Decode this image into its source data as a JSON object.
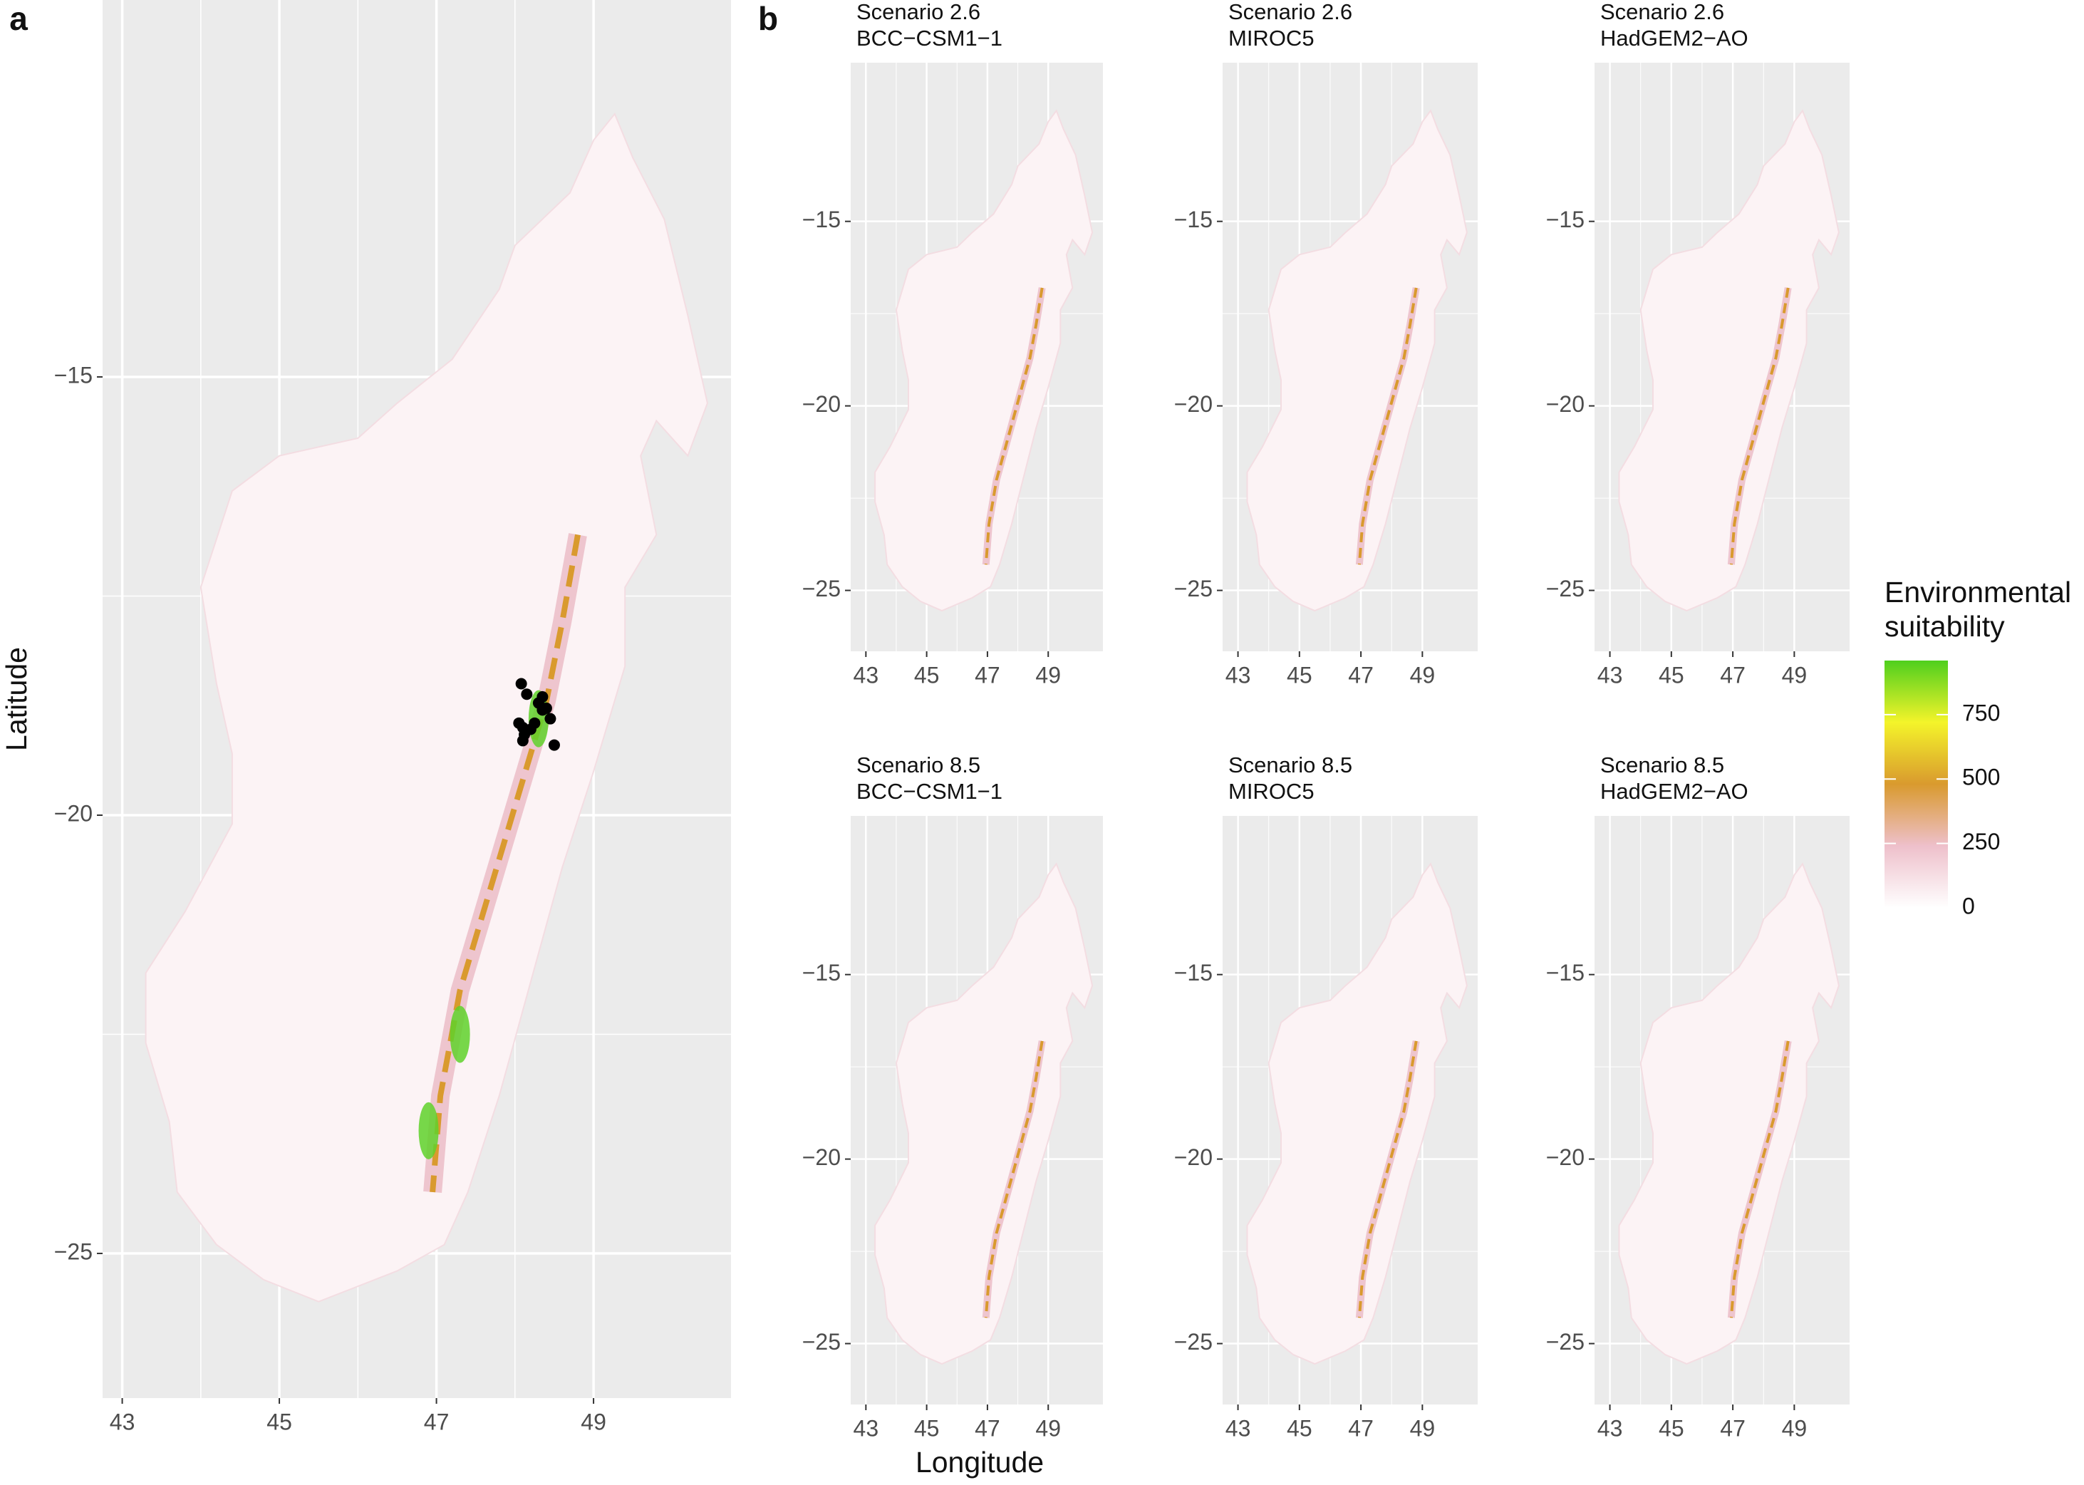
{
  "chart_data": [
    {
      "type": "map",
      "panel_label": "a",
      "y_label": "Latitude",
      "xlim": [
        42.75,
        50.75
      ],
      "ylim": [
        -26.65,
        -10.7
      ],
      "xticks": [
        43,
        45,
        47,
        49
      ],
      "yticks": [
        {
          "value": -15,
          "label": "−15"
        },
        {
          "value": -20,
          "label": "−20"
        },
        {
          "value": -25,
          "label": "−25"
        }
      ],
      "grid": true,
      "points": {
        "x": [
          48.08,
          48.15,
          48.3,
          48.35,
          48.4,
          48.45,
          48.05,
          48.1,
          48.12,
          48.2,
          48.25,
          48.1,
          48.5,
          48.35
        ],
        "y": [
          -18.5,
          -18.62,
          -18.72,
          -18.8,
          -18.78,
          -18.9,
          -18.95,
          -19.0,
          -19.08,
          -19.02,
          -18.95,
          -19.15,
          -19.2,
          -18.65
        ]
      }
    },
    {
      "type": "map",
      "panel_label": "b",
      "title_lines": [
        "Scenario 2.6",
        "BCC−CSM1−1"
      ],
      "xlim": [
        42.5,
        50.8
      ],
      "ylim": [
        -26.65,
        -10.7
      ],
      "xticks": [
        43,
        45,
        47,
        49
      ],
      "yticks": [
        {
          "value": -15,
          "label": "−15"
        },
        {
          "value": -20,
          "label": "−20"
        },
        {
          "value": -25,
          "label": "−25"
        }
      ],
      "grid": true
    },
    {
      "type": "map",
      "title_lines": [
        "Scenario 2.6",
        "MIROC5"
      ],
      "xlim": [
        42.5,
        50.8
      ],
      "ylim": [
        -26.65,
        -10.7
      ],
      "xticks": [
        43,
        45,
        47,
        49
      ],
      "yticks": [
        {
          "value": -15,
          "label": "−15"
        },
        {
          "value": -20,
          "label": "−20"
        },
        {
          "value": -25,
          "label": "−25"
        }
      ],
      "grid": true
    },
    {
      "type": "map",
      "title_lines": [
        "Scenario 2.6",
        "HadGEM2−AO"
      ],
      "xlim": [
        42.5,
        50.8
      ],
      "ylim": [
        -26.65,
        -10.7
      ],
      "xticks": [
        43,
        45,
        47,
        49
      ],
      "yticks": [
        {
          "value": -15,
          "label": "−15"
        },
        {
          "value": -20,
          "label": "−20"
        },
        {
          "value": -25,
          "label": "−25"
        }
      ],
      "grid": true
    },
    {
      "type": "map",
      "title_lines": [
        "Scenario 8.5",
        "BCC−CSM1−1"
      ],
      "x_label": "Longitude",
      "xlim": [
        42.5,
        50.8
      ],
      "ylim": [
        -26.65,
        -10.7
      ],
      "xticks": [
        43,
        45,
        47,
        49
      ],
      "yticks": [
        {
          "value": -15,
          "label": "−15"
        },
        {
          "value": -20,
          "label": "−20"
        },
        {
          "value": -25,
          "label": "−25"
        }
      ],
      "grid": true
    },
    {
      "type": "map",
      "title_lines": [
        "Scenario 8.5",
        "MIROC5"
      ],
      "xlim": [
        42.5,
        50.8
      ],
      "ylim": [
        -26.65,
        -10.7
      ],
      "xticks": [
        43,
        45,
        47,
        49
      ],
      "yticks": [
        {
          "value": -15,
          "label": "−15"
        },
        {
          "value": -20,
          "label": "−20"
        },
        {
          "value": -25,
          "label": "−25"
        }
      ],
      "grid": true
    },
    {
      "type": "map",
      "title_lines": [
        "Scenario 8.5",
        "HadGEM2−AO"
      ],
      "xlim": [
        42.5,
        50.8
      ],
      "ylim": [
        -26.65,
        -10.7
      ],
      "xticks": [
        43,
        45,
        47,
        49
      ],
      "yticks": [
        {
          "value": -15,
          "label": "−15"
        },
        {
          "value": -20,
          "label": "−20"
        },
        {
          "value": -25,
          "label": "−25"
        }
      ],
      "grid": true
    },
    {
      "type": "colorbar",
      "title_lines": [
        "Environmental",
        "suitability"
      ],
      "ylim": [
        0,
        960
      ],
      "yticks": [
        0,
        250,
        500,
        750
      ],
      "colors": [
        "#ffffff",
        "#eec0cb",
        "#d99a2e",
        "#f4f42a",
        "#4fcf1e"
      ]
    }
  ]
}
